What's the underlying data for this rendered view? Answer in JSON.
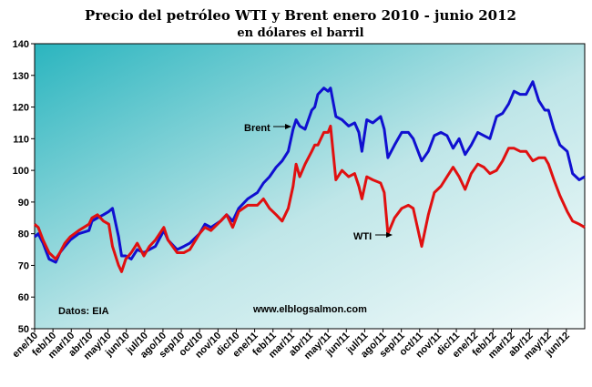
{
  "chart_data": {
    "type": "line",
    "title": "Precio del petróleo WTI y Brent enero 2010 - junio 2012",
    "subtitle": "en dólares el barril",
    "ylim": [
      50,
      140
    ],
    "yticks": [
      50,
      60,
      70,
      80,
      90,
      100,
      110,
      120,
      130,
      140
    ],
    "xlim": [
      "2010-01-01",
      "2012-06-30"
    ],
    "xtick_labels": [
      "ene/10",
      "feb/10",
      "mar/10",
      "abr/10",
      "may/10",
      "jun/10",
      "jul/10",
      "ago/10",
      "sep/10",
      "oct/10",
      "nov/10",
      "dic/10",
      "ene/11",
      "feb/11",
      "mar/11",
      "abr/11",
      "may/11",
      "jun/11",
      "jul/11",
      "ago/11",
      "sep/11",
      "oct/11",
      "nov/11",
      "dic/11",
      "ene/12",
      "feb/12",
      "mar/12",
      "abr/12",
      "may/12",
      "jun/12"
    ],
    "grid": false,
    "plot_background": "gradient teal-to-light",
    "series": [
      {
        "name": "Brent",
        "color": "#1010d0",
        "x": [
          "2010-01-01",
          "2010-01-07",
          "2010-01-15",
          "2010-01-25",
          "2010-02-05",
          "2010-02-12",
          "2010-02-20",
          "2010-03-01",
          "2010-03-15",
          "2010-04-01",
          "2010-04-06",
          "2010-04-15",
          "2010-04-25",
          "2010-05-04",
          "2010-05-10",
          "2010-05-20",
          "2010-05-25",
          "2010-06-01",
          "2010-06-10",
          "2010-06-20",
          "2010-07-01",
          "2010-07-10",
          "2010-07-20",
          "2010-08-03",
          "2010-08-10",
          "2010-08-25",
          "2010-09-05",
          "2010-09-15",
          "2010-10-01",
          "2010-10-10",
          "2010-10-20",
          "2010-11-05",
          "2010-11-15",
          "2010-11-25",
          "2010-12-05",
          "2010-12-20",
          "2011-01-05",
          "2011-01-15",
          "2011-01-25",
          "2011-02-05",
          "2011-02-15",
          "2011-02-25",
          "2011-03-05",
          "2011-03-10",
          "2011-03-16",
          "2011-03-25",
          "2011-04-05",
          "2011-04-10",
          "2011-04-15",
          "2011-04-25",
          "2011-05-02",
          "2011-05-06",
          "2011-05-15",
          "2011-05-25",
          "2011-06-05",
          "2011-06-15",
          "2011-06-22",
          "2011-06-27",
          "2011-07-05",
          "2011-07-15",
          "2011-07-28",
          "2011-08-03",
          "2011-08-09",
          "2011-08-20",
          "2011-09-01",
          "2011-09-12",
          "2011-09-20",
          "2011-10-04",
          "2011-10-15",
          "2011-10-25",
          "2011-11-05",
          "2011-11-15",
          "2011-11-25",
          "2011-12-05",
          "2011-12-15",
          "2011-12-25",
          "2012-01-05",
          "2012-01-15",
          "2012-01-25",
          "2012-02-05",
          "2012-02-15",
          "2012-02-25",
          "2012-03-05",
          "2012-03-15",
          "2012-03-25",
          "2012-04-05",
          "2012-04-15",
          "2012-04-25",
          "2012-05-01",
          "2012-05-10",
          "2012-05-20",
          "2012-06-01",
          "2012-06-10",
          "2012-06-21",
          "2012-06-30"
        ],
        "y": [
          79,
          80,
          77,
          72,
          71,
          74,
          76,
          78,
          80,
          81,
          84,
          85,
          86,
          87,
          88,
          79,
          73,
          73,
          72,
          75,
          74,
          75,
          76,
          81,
          78,
          75,
          76,
          77,
          80,
          83,
          82,
          84,
          86,
          84,
          88,
          91,
          93,
          96,
          98,
          101,
          103,
          106,
          113,
          116,
          114,
          113,
          119,
          120,
          124,
          126,
          125,
          126,
          117,
          116,
          114,
          115,
          112,
          106,
          116,
          115,
          117,
          113,
          104,
          108,
          112,
          112,
          110,
          103,
          106,
          111,
          112,
          111,
          107,
          110,
          105,
          108,
          112,
          111,
          110,
          117,
          118,
          121,
          125,
          124,
          124,
          128,
          122,
          119,
          119,
          113,
          108,
          106,
          99,
          97,
          98
        ]
      },
      {
        "name": "WTI",
        "color": "#e01010",
        "x": [
          "2010-01-01",
          "2010-01-07",
          "2010-01-15",
          "2010-01-25",
          "2010-02-05",
          "2010-02-12",
          "2010-02-20",
          "2010-03-01",
          "2010-03-15",
          "2010-04-01",
          "2010-04-06",
          "2010-04-15",
          "2010-04-25",
          "2010-05-04",
          "2010-05-10",
          "2010-05-20",
          "2010-05-25",
          "2010-06-01",
          "2010-06-10",
          "2010-06-20",
          "2010-07-01",
          "2010-07-10",
          "2010-07-20",
          "2010-08-03",
          "2010-08-10",
          "2010-08-25",
          "2010-09-05",
          "2010-09-15",
          "2010-10-01",
          "2010-10-10",
          "2010-10-20",
          "2010-11-05",
          "2010-11-15",
          "2010-11-25",
          "2010-12-05",
          "2010-12-20",
          "2011-01-05",
          "2011-01-15",
          "2011-01-25",
          "2011-02-05",
          "2011-02-15",
          "2011-02-25",
          "2011-03-05",
          "2011-03-10",
          "2011-03-16",
          "2011-03-25",
          "2011-04-05",
          "2011-04-10",
          "2011-04-15",
          "2011-04-25",
          "2011-05-02",
          "2011-05-06",
          "2011-05-15",
          "2011-05-25",
          "2011-06-05",
          "2011-06-15",
          "2011-06-22",
          "2011-06-27",
          "2011-07-05",
          "2011-07-15",
          "2011-07-28",
          "2011-08-03",
          "2011-08-09",
          "2011-08-20",
          "2011-09-01",
          "2011-09-12",
          "2011-09-20",
          "2011-10-04",
          "2011-10-15",
          "2011-10-25",
          "2011-11-05",
          "2011-11-15",
          "2011-11-25",
          "2011-12-05",
          "2011-12-15",
          "2011-12-25",
          "2012-01-05",
          "2012-01-15",
          "2012-01-25",
          "2012-02-05",
          "2012-02-15",
          "2012-02-25",
          "2012-03-05",
          "2012-03-15",
          "2012-03-25",
          "2012-04-05",
          "2012-04-15",
          "2012-04-25",
          "2012-05-01",
          "2012-05-10",
          "2012-05-20",
          "2012-06-01",
          "2012-06-10",
          "2012-06-21",
          "2012-06-30"
        ],
        "y": [
          83,
          82,
          78,
          74,
          72,
          74,
          77,
          79,
          81,
          83,
          85,
          86,
          84,
          83,
          76,
          70,
          68,
          72,
          74,
          77,
          73,
          76,
          78,
          82,
          78,
          74,
          74,
          75,
          80,
          82,
          81,
          84,
          86,
          82,
          87,
          89,
          89,
          91,
          88,
          86,
          84,
          88,
          95,
          102,
          98,
          102,
          106,
          108,
          108,
          112,
          112,
          114,
          97,
          100,
          98,
          99,
          95,
          91,
          98,
          97,
          96,
          93,
          80,
          85,
          88,
          89,
          88,
          76,
          86,
          93,
          95,
          98,
          101,
          98,
          94,
          99,
          102,
          101,
          99,
          100,
          103,
          107,
          107,
          106,
          106,
          103,
          104,
          104,
          102,
          97,
          92,
          87,
          84,
          83,
          82
        ]
      }
    ],
    "annotations": [
      "Brent",
      "WTI",
      "Datos: EIA",
      "www.elblogsalmon.com"
    ]
  }
}
